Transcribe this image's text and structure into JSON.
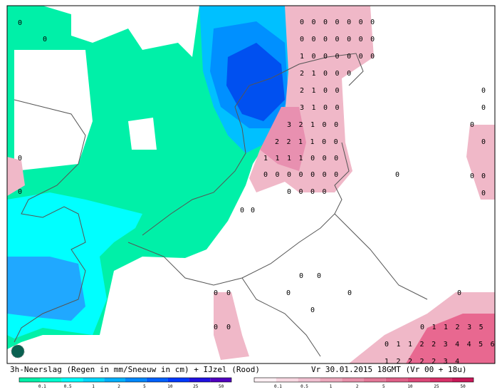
{
  "caption": "3h-Neerslag (Regen in mm/Sneeuw in cm) + IJzel (Rood)",
  "valid_time": "Vr 30.01.2015 18GMT (Vr 00 + 18u)",
  "rain_scale": {
    "labels": [
      "0.1",
      "0.5",
      "1",
      "2",
      "5",
      "10",
      "25",
      "50"
    ]
  },
  "ice_scale": {
    "labels": [
      "0.1",
      "0.5",
      "1",
      "2",
      "5",
      "10",
      "25",
      "50"
    ]
  },
  "grid_rows": [
    "0000000",
    "0000000",
    "1000000",
    "21000",
    "2100",
    "3100",
    "32100",
    "221100",
    "1111000",
    "0000000",
    "0000",
    "011235",
    "0112234456",
    "1222234"
  ],
  "single_values": [
    "0",
    "0",
    "0",
    "0",
    "0",
    "0",
    "0",
    "0",
    "0",
    "0",
    "0",
    "0",
    "0",
    "0",
    "0",
    "0",
    "0",
    "0",
    "0",
    "0",
    "0",
    "0",
    "0",
    "0"
  ]
}
